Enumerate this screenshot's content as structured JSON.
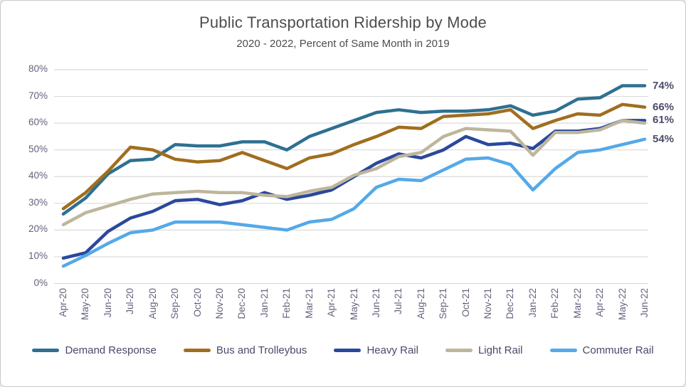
{
  "chart_data": {
    "type": "line",
    "title": "Public Transportation Ridership by Mode",
    "subtitle": "2020 - 2022, Percent of Same Month in 2019",
    "categories": [
      "Apr-20",
      "May-20",
      "Jun-20",
      "Jul-20",
      "Aug-20",
      "Sep-20",
      "Oct-20",
      "Nov-20",
      "Dec-20",
      "Jan-21",
      "Feb-21",
      "Mar-21",
      "Apr-21",
      "May-21",
      "Jun-21",
      "Jul-21",
      "Aug-21",
      "Sep-21",
      "Oct-21",
      "Nov-21",
      "Dec-21",
      "Jan-22",
      "Feb-22",
      "Mar-22",
      "Apr-22",
      "May-22",
      "Jun-22"
    ],
    "series": [
      {
        "name": "Demand Response",
        "color": "#2E7091",
        "end_label": "74%",
        "values": [
          26,
          32,
          41,
          46,
          46.5,
          52,
          51.5,
          51.5,
          53,
          53,
          50,
          55,
          58,
          61,
          64,
          65,
          64,
          64.5,
          64.5,
          65,
          66.5,
          63,
          64.5,
          69,
          69.5,
          74,
          74
        ]
      },
      {
        "name": "Bus and Trolleybus",
        "color": "#A06E1E",
        "end_label": "66%",
        "values": [
          28,
          34,
          42,
          51,
          50,
          46.5,
          45.5,
          46,
          49,
          46,
          43,
          47,
          48.5,
          52,
          55,
          58.5,
          58,
          62.5,
          63,
          63.5,
          65,
          58,
          61,
          63.5,
          63,
          67,
          66
        ]
      },
      {
        "name": "Heavy Rail",
        "color": "#2A489C",
        "end_label": "61%",
        "values": [
          9.5,
          11.5,
          19.5,
          24.5,
          27,
          31,
          31.5,
          29.5,
          31,
          34,
          31.5,
          33,
          35,
          40,
          45,
          48.5,
          47,
          50,
          55,
          52,
          52.5,
          50.5,
          57,
          57,
          58,
          61,
          61
        ]
      },
      {
        "name": "Light Rail",
        "color": "#BEB69C",
        "end_label": "",
        "values": [
          22,
          26.5,
          29,
          31.5,
          33.5,
          34,
          34.5,
          34,
          34,
          33,
          32.5,
          34.5,
          36,
          40.5,
          43,
          47.5,
          49,
          55,
          58,
          57.5,
          57,
          48,
          56.5,
          56.5,
          57.5,
          61,
          60
        ]
      },
      {
        "name": "Commuter Rail",
        "color": "#54A9E8",
        "end_label": "54%",
        "values": [
          6.5,
          10.5,
          15,
          19,
          20,
          23,
          23,
          23,
          22,
          21,
          20,
          23,
          24,
          28,
          36,
          39,
          38.5,
          42.5,
          46.5,
          47,
          44.5,
          35,
          43,
          49,
          50,
          52,
          54
        ]
      }
    ],
    "y_axis": {
      "min": 0,
      "max": 80,
      "step": 10,
      "suffix": "%",
      "tick_labels": [
        "0%",
        "10%",
        "20%",
        "30%",
        "40%",
        "50%",
        "60%",
        "70%",
        "80%"
      ]
    },
    "grid": true,
    "legend_position": "bottom"
  },
  "colors": {
    "grid": "#DADADA",
    "axis_text": "#63637D",
    "end_label_text": "#4C4D68",
    "legend_text": "#494A68",
    "title_text": "#4D4D4D",
    "background": "#FFFFFF",
    "border": "#C9C9C9"
  }
}
